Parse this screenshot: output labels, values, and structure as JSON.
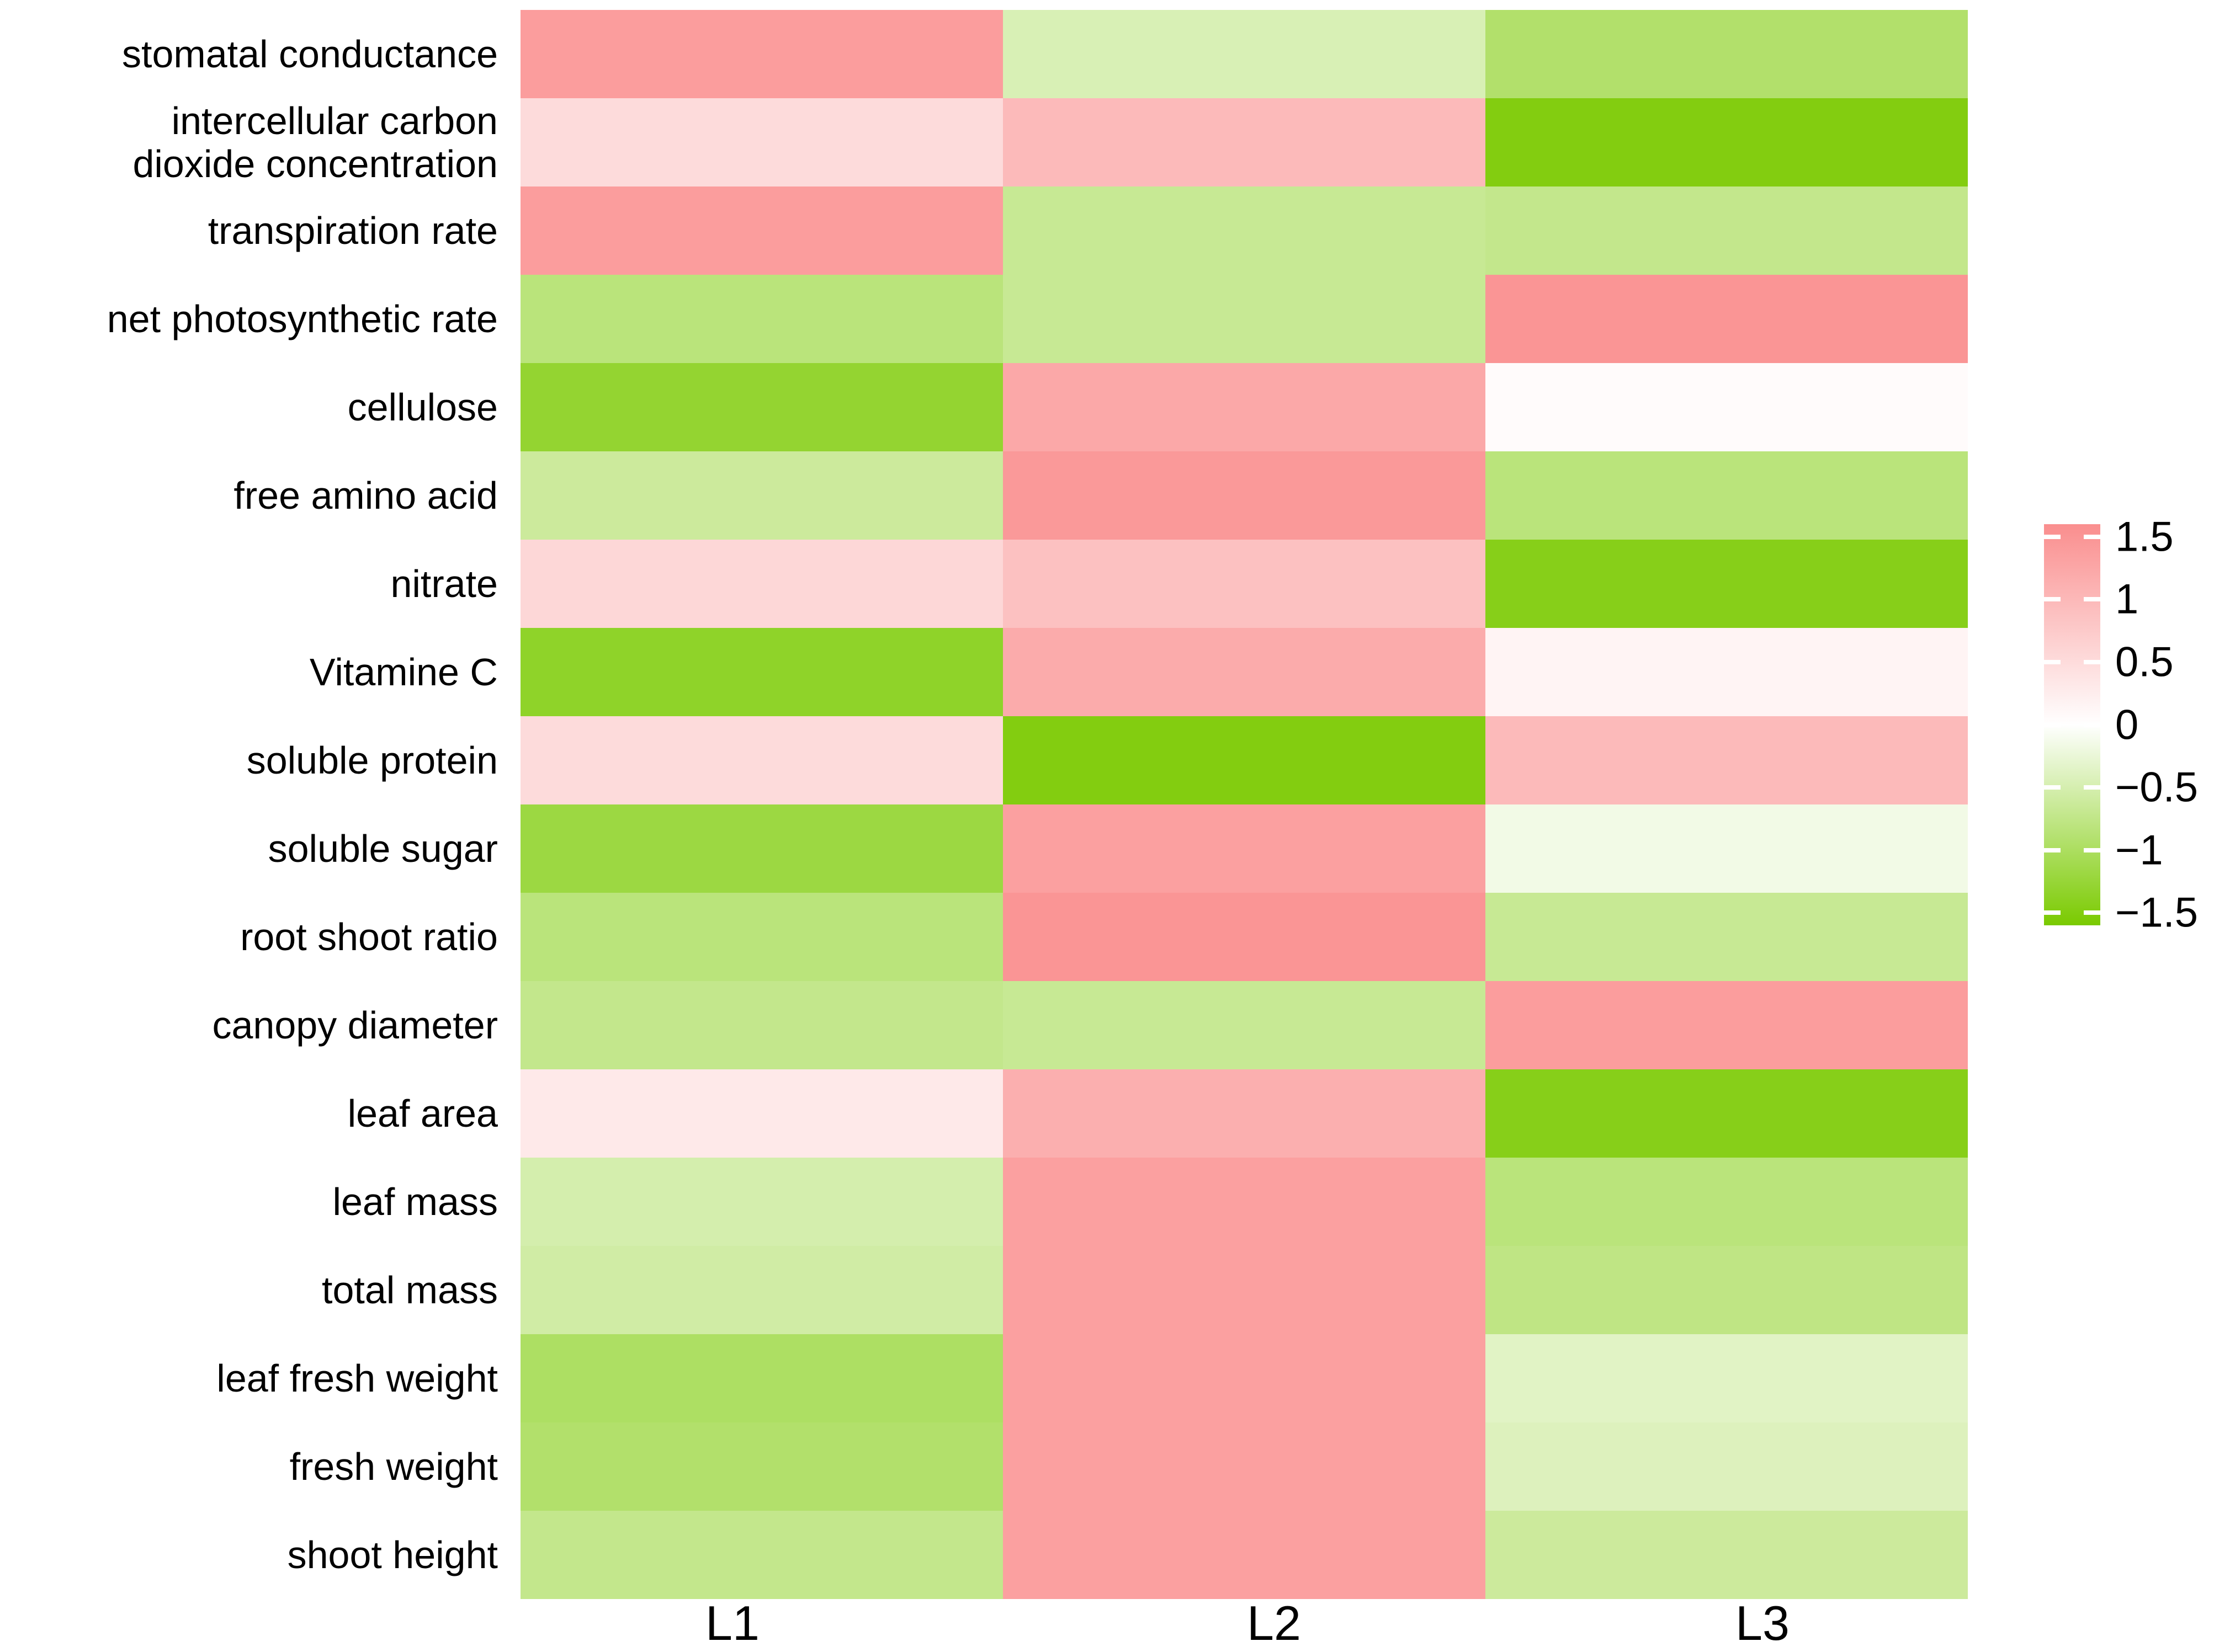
{
  "chart_data": {
    "type": "heatmap",
    "title": "",
    "xlabel": "",
    "ylabel": "",
    "grid": false,
    "legend_position": "right",
    "columns": [
      "L1",
      "L2",
      "L3"
    ],
    "rows": [
      {
        "label": "stomatal conductance",
        "lines": [
          "stomatal conductance"
        ],
        "values": [
          1.35,
          -0.45,
          -0.9
        ]
      },
      {
        "label": "intercellular carbon dioxide concentration",
        "lines": [
          "intercellular carbon",
          "dioxide concentration"
        ],
        "values": [
          0.5,
          0.95,
          -1.45
        ]
      },
      {
        "label": "transpiration rate",
        "lines": [
          "transpiration rate"
        ],
        "values": [
          1.35,
          -0.65,
          -0.7
        ]
      },
      {
        "label": "net photosynthetic rate",
        "lines": [
          "net photosynthetic rate"
        ],
        "values": [
          -0.8,
          -0.65,
          1.45
        ]
      },
      {
        "label": "cellulose",
        "lines": [
          "cellulose"
        ],
        "values": [
          -1.25,
          1.2,
          0.05
        ]
      },
      {
        "label": "free amino acid",
        "lines": [
          "free amino acid"
        ],
        "values": [
          -0.6,
          1.4,
          -0.8
        ]
      },
      {
        "label": "nitrate",
        "lines": [
          "nitrate"
        ],
        "values": [
          0.55,
          0.85,
          -1.4
        ]
      },
      {
        "label": "Vitamine C",
        "lines": [
          "Vitamine C"
        ],
        "values": [
          -1.3,
          1.15,
          0.15
        ]
      },
      {
        "label": "soluble protein",
        "lines": [
          "soluble protein"
        ],
        "values": [
          0.5,
          -1.45,
          0.95
        ]
      },
      {
        "label": "soluble sugar",
        "lines": [
          "soluble sugar"
        ],
        "values": [
          -1.15,
          1.3,
          -0.15
        ]
      },
      {
        "label": "root shoot ratio",
        "lines": [
          "root shoot ratio"
        ],
        "values": [
          -0.8,
          1.45,
          -0.65
        ]
      },
      {
        "label": "canopy diameter",
        "lines": [
          "canopy diameter"
        ],
        "values": [
          -0.7,
          -0.65,
          1.35
        ]
      },
      {
        "label": "leaf area",
        "lines": [
          "leaf area"
        ],
        "values": [
          0.3,
          1.1,
          -1.4
        ]
      },
      {
        "label": "leaf mass",
        "lines": [
          "leaf mass"
        ],
        "values": [
          -0.5,
          1.3,
          -0.8
        ]
      },
      {
        "label": "total mass",
        "lines": [
          "total mass"
        ],
        "values": [
          -0.55,
          1.3,
          -0.75
        ]
      },
      {
        "label": "leaf fresh weight",
        "lines": [
          "leaf fresh weight"
        ],
        "values": [
          -0.95,
          1.3,
          -0.35
        ]
      },
      {
        "label": "fresh weight",
        "lines": [
          "fresh weight"
        ],
        "values": [
          -0.9,
          1.3,
          -0.4
        ]
      },
      {
        "label": "shoot height",
        "lines": [
          "shoot height"
        ],
        "values": [
          -0.7,
          1.3,
          -0.6
        ]
      }
    ],
    "legend": {
      "range": [
        -1.6,
        1.6
      ],
      "color_saturation_value": 1.55,
      "max_color": "#FA8E8E",
      "mid_color": "#FFFFFF",
      "min_color": "#7ACA00",
      "ticks": [
        {
          "label": "1.5",
          "value": 1.5
        },
        {
          "label": "1",
          "value": 1.0
        },
        {
          "label": "0.5",
          "value": 0.5
        },
        {
          "label": "0",
          "value": 0.0
        },
        {
          "label": "−0.5",
          "value": -0.5
        },
        {
          "label": "−1",
          "value": -1.0
        },
        {
          "label": "−1.5",
          "value": -1.5
        }
      ]
    }
  }
}
